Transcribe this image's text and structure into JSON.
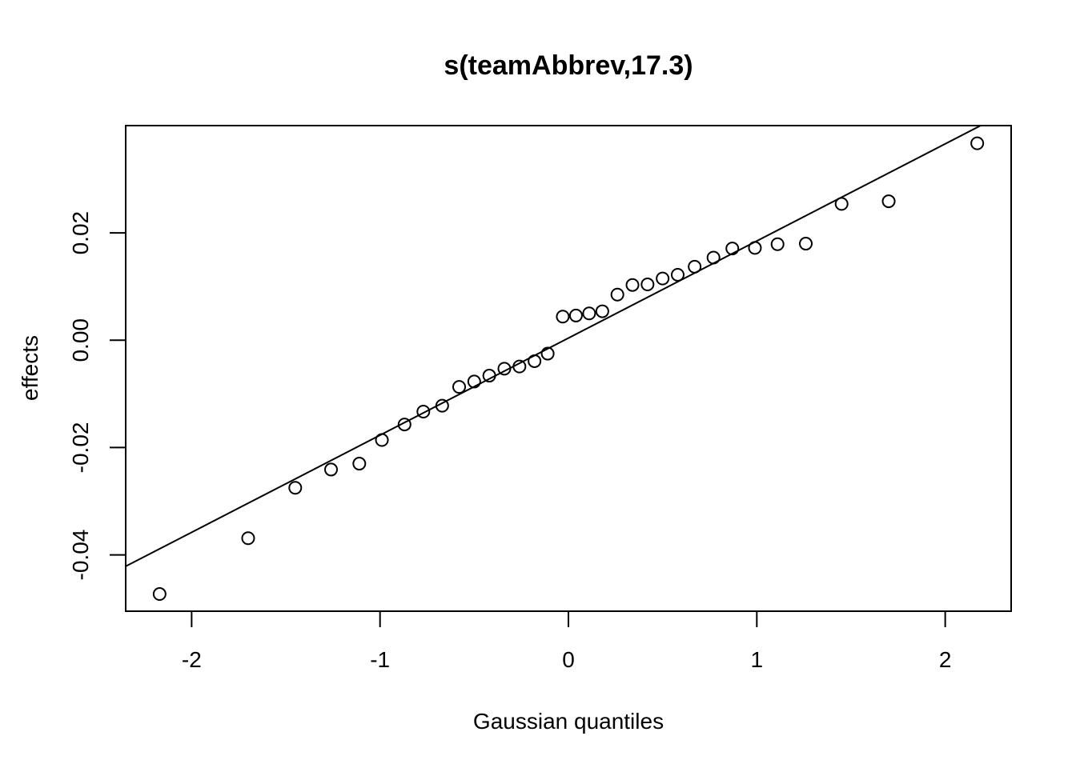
{
  "chart_data": {
    "type": "scatter",
    "title": "s(teamAbbrev,17.3)",
    "xlabel": "Gaussian quantiles",
    "ylabel": "effects",
    "xlim": [
      -2.35,
      2.35
    ],
    "ylim": [
      -0.0505,
      0.04
    ],
    "x_ticks": [
      -2,
      -1,
      0,
      1,
      2
    ],
    "x_tick_labels": [
      "-2",
      "-1",
      "0",
      "1",
      "2"
    ],
    "y_ticks": [
      -0.04,
      -0.02,
      0.0,
      0.02
    ],
    "y_tick_labels": [
      "-0.04",
      "-0.02",
      "0.00",
      "0.02"
    ],
    "grid": false,
    "legend": "none",
    "reference_line": {
      "intercept": 0.0004,
      "slope": 0.0181
    },
    "points": [
      {
        "x": -2.17,
        "y": -0.0473
      },
      {
        "x": -1.7,
        "y": -0.0369
      },
      {
        "x": -1.45,
        "y": -0.0275
      },
      {
        "x": -1.26,
        "y": -0.0241
      },
      {
        "x": -1.11,
        "y": -0.023
      },
      {
        "x": -0.99,
        "y": -0.0186
      },
      {
        "x": -0.87,
        "y": -0.0157
      },
      {
        "x": -0.77,
        "y": -0.0133
      },
      {
        "x": -0.67,
        "y": -0.0122
      },
      {
        "x": -0.58,
        "y": -0.0087
      },
      {
        "x": -0.5,
        "y": -0.0077
      },
      {
        "x": -0.42,
        "y": -0.0066
      },
      {
        "x": -0.34,
        "y": -0.0053
      },
      {
        "x": -0.26,
        "y": -0.0049
      },
      {
        "x": -0.18,
        "y": -0.0039
      },
      {
        "x": -0.11,
        "y": -0.0025
      },
      {
        "x": -0.03,
        "y": 0.0044
      },
      {
        "x": 0.04,
        "y": 0.0046
      },
      {
        "x": 0.11,
        "y": 0.005
      },
      {
        "x": 0.18,
        "y": 0.0054
      },
      {
        "x": 0.26,
        "y": 0.0085
      },
      {
        "x": 0.34,
        "y": 0.0103
      },
      {
        "x": 0.42,
        "y": 0.0104
      },
      {
        "x": 0.5,
        "y": 0.0115
      },
      {
        "x": 0.58,
        "y": 0.0122
      },
      {
        "x": 0.67,
        "y": 0.0137
      },
      {
        "x": 0.77,
        "y": 0.0154
      },
      {
        "x": 0.87,
        "y": 0.0171
      },
      {
        "x": 0.99,
        "y": 0.0172
      },
      {
        "x": 1.11,
        "y": 0.0179
      },
      {
        "x": 1.26,
        "y": 0.018
      },
      {
        "x": 1.45,
        "y": 0.0254
      },
      {
        "x": 1.7,
        "y": 0.0259
      },
      {
        "x": 2.17,
        "y": 0.0367
      }
    ]
  }
}
